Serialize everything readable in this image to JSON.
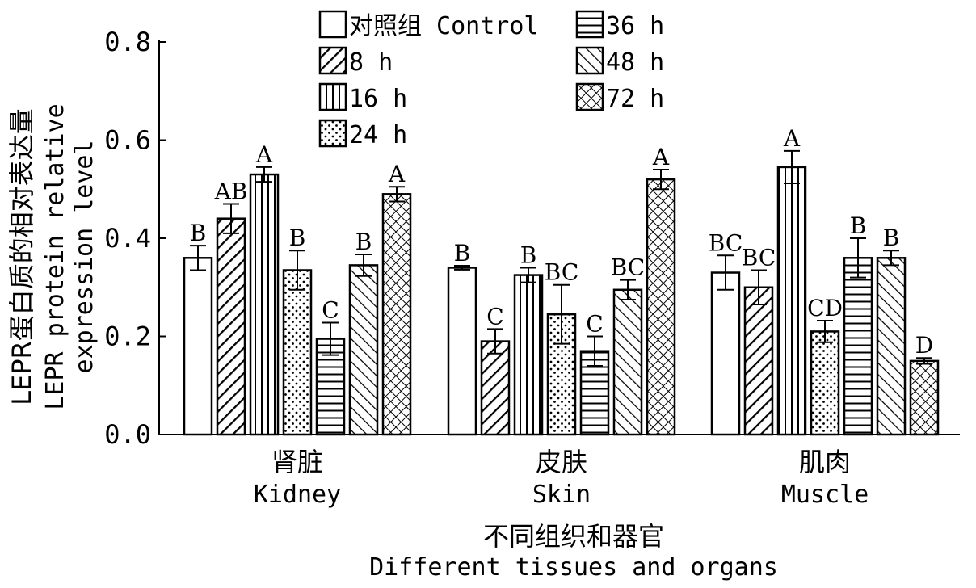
{
  "chart_data": {
    "type": "bar",
    "categories": [
      "肾脏",
      "皮肤",
      "肌肉"
    ],
    "categories_en": [
      "Kidney",
      "Skin",
      "Muscle"
    ],
    "xlabel": "不同组织和器官",
    "xlabel_en": "Different tissues and organs",
    "ylabel": "LEPR蛋白质的相对表达量",
    "ylabel_en_line1": "LEPR protein relative",
    "ylabel_en_line2": "expression level",
    "ylim": [
      0,
      0.8
    ],
    "yticks": [
      "0.0",
      "0.2",
      "0.4",
      "0.6",
      "0.8"
    ],
    "legend_placement": "top-center",
    "grid": false,
    "series": [
      {
        "name": "对照组 Control",
        "pattern": "white",
        "values": [
          0.36,
          0.34,
          0.33
        ],
        "errors": [
          0.025,
          0.004,
          0.035
        ],
        "labels": [
          "B",
          "B",
          "BC"
        ]
      },
      {
        "name": "8 h",
        "pattern": "diag-right",
        "values": [
          0.44,
          0.19,
          0.3
        ],
        "errors": [
          0.03,
          0.025,
          0.035
        ],
        "labels": [
          "AB",
          "C",
          "BC"
        ]
      },
      {
        "name": "16 h",
        "pattern": "vertical",
        "values": [
          0.53,
          0.325,
          0.545
        ],
        "errors": [
          0.015,
          0.015,
          0.033
        ],
        "labels": [
          "A",
          "B",
          "A"
        ]
      },
      {
        "name": "24 h",
        "pattern": "dots",
        "values": [
          0.335,
          0.245,
          0.21
        ],
        "errors": [
          0.04,
          0.06,
          0.022
        ],
        "labels": [
          "B",
          "BC",
          "CD"
        ]
      },
      {
        "name": "36 h",
        "pattern": "horizontal",
        "values": [
          0.195,
          0.17,
          0.36
        ],
        "errors": [
          0.033,
          0.03,
          0.04
        ],
        "labels": [
          "C",
          "C",
          "B"
        ]
      },
      {
        "name": "48 h",
        "pattern": "diag-left",
        "values": [
          0.345,
          0.295,
          0.36
        ],
        "errors": [
          0.022,
          0.02,
          0.015
        ],
        "labels": [
          "B",
          "BC",
          "B"
        ]
      },
      {
        "name": "72 h",
        "pattern": "crosshatch",
        "values": [
          0.49,
          0.52,
          0.15
        ],
        "errors": [
          0.015,
          0.02,
          0.006
        ],
        "labels": [
          "A",
          "A",
          "D"
        ]
      }
    ]
  }
}
